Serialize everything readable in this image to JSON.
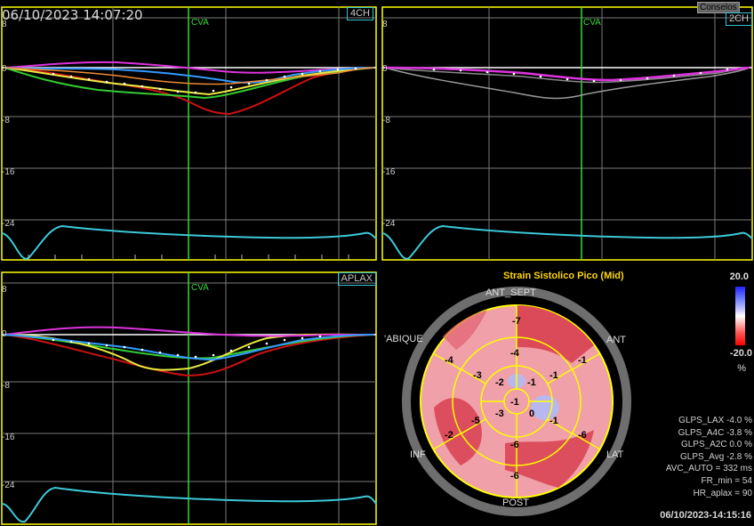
{
  "panels": {
    "p4ch": {
      "timestamp": "06/10/2023 14:07:20",
      "view_tag": "4CH",
      "cva_label": "CVA",
      "y_ticks": [
        "8",
        "0",
        "-8",
        "-16",
        "-24"
      ]
    },
    "p2ch": {
      "view_tag": "2CH",
      "button": "Conselos",
      "cva_label": "CVA",
      "y_ticks": [
        "8",
        "0",
        "-8",
        "-16",
        "-24"
      ]
    },
    "aplax": {
      "view_tag": "APLAX",
      "cva_label": "CVA",
      "y_ticks": [
        "8",
        "0",
        "-8",
        "-16",
        "-24"
      ]
    }
  },
  "bullseye": {
    "title": "Strain Sistolico Pico (Mid)",
    "walls": {
      "ant_sept": "ANT_SEPT",
      "ant": "ANT",
      "septum": "'ABIQUE",
      "lat": "LAT",
      "inf": "INF",
      "post": "POST"
    },
    "segments": {
      "outer": [
        "-7",
        "-1",
        "-6",
        "-6",
        "-2",
        "-4"
      ],
      "middle": [
        "-4",
        "-1",
        "-1",
        "-6",
        "-5",
        "-3"
      ],
      "inner": [
        "-1",
        "0",
        "-3",
        "-2"
      ],
      "apex": "-1"
    },
    "scale": {
      "max": "20.0",
      "min": "-20.0",
      "unit": "%"
    },
    "stats": [
      "GLPS_LAX  -4.0 %",
      "GLPS_A4C  -3.8 %",
      "GLPS_A2C  0.0 %",
      "GLPS_Avg  -2.8 %",
      "AVC_AUTO = 332 ms",
      "FR_min = 54",
      "HR_aplax = 90"
    ],
    "timestamp": "06/10/2023-14:15:16"
  },
  "colors": {
    "frame": "#ffff00",
    "grid": "#7a7a7a",
    "cva_line": "#33dd33",
    "ecg": "#3cc8d8",
    "tag_border": "#39c3d6",
    "strain_red": "#cc1111",
    "strain_green": "#33cc33",
    "strain_yellow": "#e8e840",
    "strain_magenta": "#dd33dd",
    "strain_blue": "#3399ff",
    "strain_orange": "#ee8833"
  }
}
